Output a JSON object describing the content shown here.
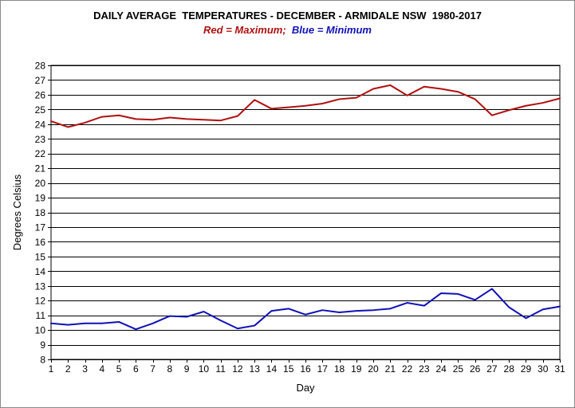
{
  "chart_data": {
    "type": "line",
    "title": "DAILY AVERAGE  TEMPERATURES - DECEMBER - ARMIDALE NSW  1980-2017",
    "subtitle": {
      "red_word": "Red",
      "red_rest": " = Maximum;  ",
      "blue_word": "Blue",
      "blue_rest": " = Minimum"
    },
    "xlabel": "Day",
    "ylabel": "Degrees Celsius",
    "xlim": [
      1,
      31
    ],
    "ylim": [
      8,
      28
    ],
    "x": [
      1,
      2,
      3,
      4,
      5,
      6,
      7,
      8,
      9,
      10,
      11,
      12,
      13,
      14,
      15,
      16,
      17,
      18,
      19,
      20,
      21,
      22,
      23,
      24,
      25,
      26,
      27,
      28,
      29,
      30,
      31
    ],
    "yticks": [
      8,
      9,
      10,
      11,
      12,
      13,
      14,
      15,
      16,
      17,
      18,
      19,
      20,
      21,
      22,
      23,
      24,
      25,
      26,
      27,
      28
    ],
    "grid": true,
    "series": [
      {
        "name": "Maximum",
        "color": "#b01010",
        "values": [
          24.2,
          23.8,
          24.1,
          24.5,
          24.6,
          24.35,
          24.3,
          24.45,
          24.35,
          24.3,
          24.25,
          24.55,
          25.65,
          25.05,
          25.15,
          25.25,
          25.4,
          25.7,
          25.8,
          26.4,
          26.65,
          25.95,
          26.55,
          26.4,
          26.2,
          25.7,
          24.6,
          24.95,
          25.25,
          25.45,
          25.75
        ]
      },
      {
        "name": "Minimum",
        "color": "#1010b8",
        "values": [
          10.45,
          10.35,
          10.45,
          10.45,
          10.55,
          10.05,
          10.45,
          10.95,
          10.9,
          11.25,
          10.65,
          10.1,
          10.3,
          11.3,
          11.45,
          11.05,
          11.35,
          11.2,
          11.3,
          11.35,
          11.45,
          11.85,
          11.65,
          12.5,
          12.45,
          12.05,
          12.8,
          11.55,
          10.8,
          11.4,
          11.6
        ]
      }
    ]
  }
}
